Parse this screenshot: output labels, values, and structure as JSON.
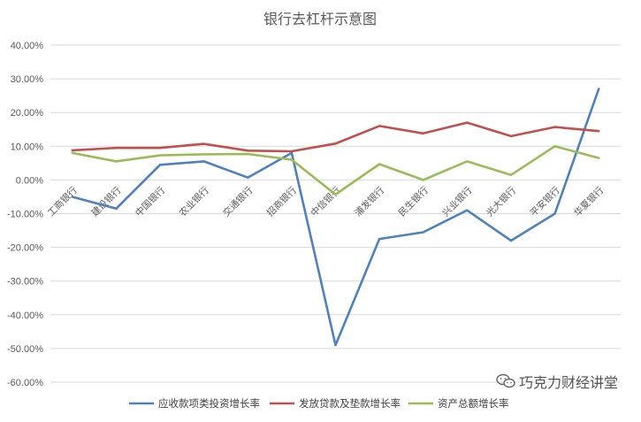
{
  "chart_data": {
    "type": "line",
    "title": "银行去杠杆示意图",
    "categories": [
      "工商银行",
      "建设银行",
      "中国银行",
      "农业银行",
      "交通银行",
      "招商银行",
      "中信银行",
      "浦发银行",
      "民生银行",
      "兴业银行",
      "光大银行",
      "平安银行",
      "华夏银行"
    ],
    "ylim": [
      -0.6,
      0.4
    ],
    "yticks": [
      0.4,
      0.3,
      0.2,
      0.1,
      0.0,
      -0.1,
      -0.2,
      -0.3,
      -0.4,
      -0.5,
      -0.6
    ],
    "ytick_labels": [
      "40.00%",
      "30.00%",
      "20.00%",
      "10.00%",
      "0.00%",
      "-10.00%",
      "-20.00%",
      "-30.00%",
      "-40.00%",
      "-50.00%",
      "-60.00%"
    ],
    "grid": true,
    "legend_position": "bottom",
    "series": [
      {
        "name": "应收款项类投资增长率",
        "color": "#4f81bd",
        "values": [
          -0.05,
          -0.085,
          0.045,
          0.055,
          0.007,
          0.08,
          -0.49,
          -0.175,
          -0.155,
          -0.09,
          -0.18,
          -0.1,
          0.27
        ]
      },
      {
        "name": "发放贷款及垫款增长率",
        "color": "#c0504d",
        "values": [
          0.088,
          0.095,
          0.095,
          0.107,
          0.087,
          0.085,
          0.108,
          0.16,
          0.138,
          0.17,
          0.13,
          0.157,
          0.145
        ]
      },
      {
        "name": "资产总额增长率",
        "color": "#9bbb59",
        "values": [
          0.08,
          0.055,
          0.073,
          0.076,
          0.077,
          0.06,
          -0.043,
          0.047,
          0.0,
          0.055,
          0.015,
          0.1,
          0.065
        ]
      }
    ]
  },
  "watermark": {
    "text": "巧克力财经讲堂",
    "icon": "wechat-icon"
  }
}
